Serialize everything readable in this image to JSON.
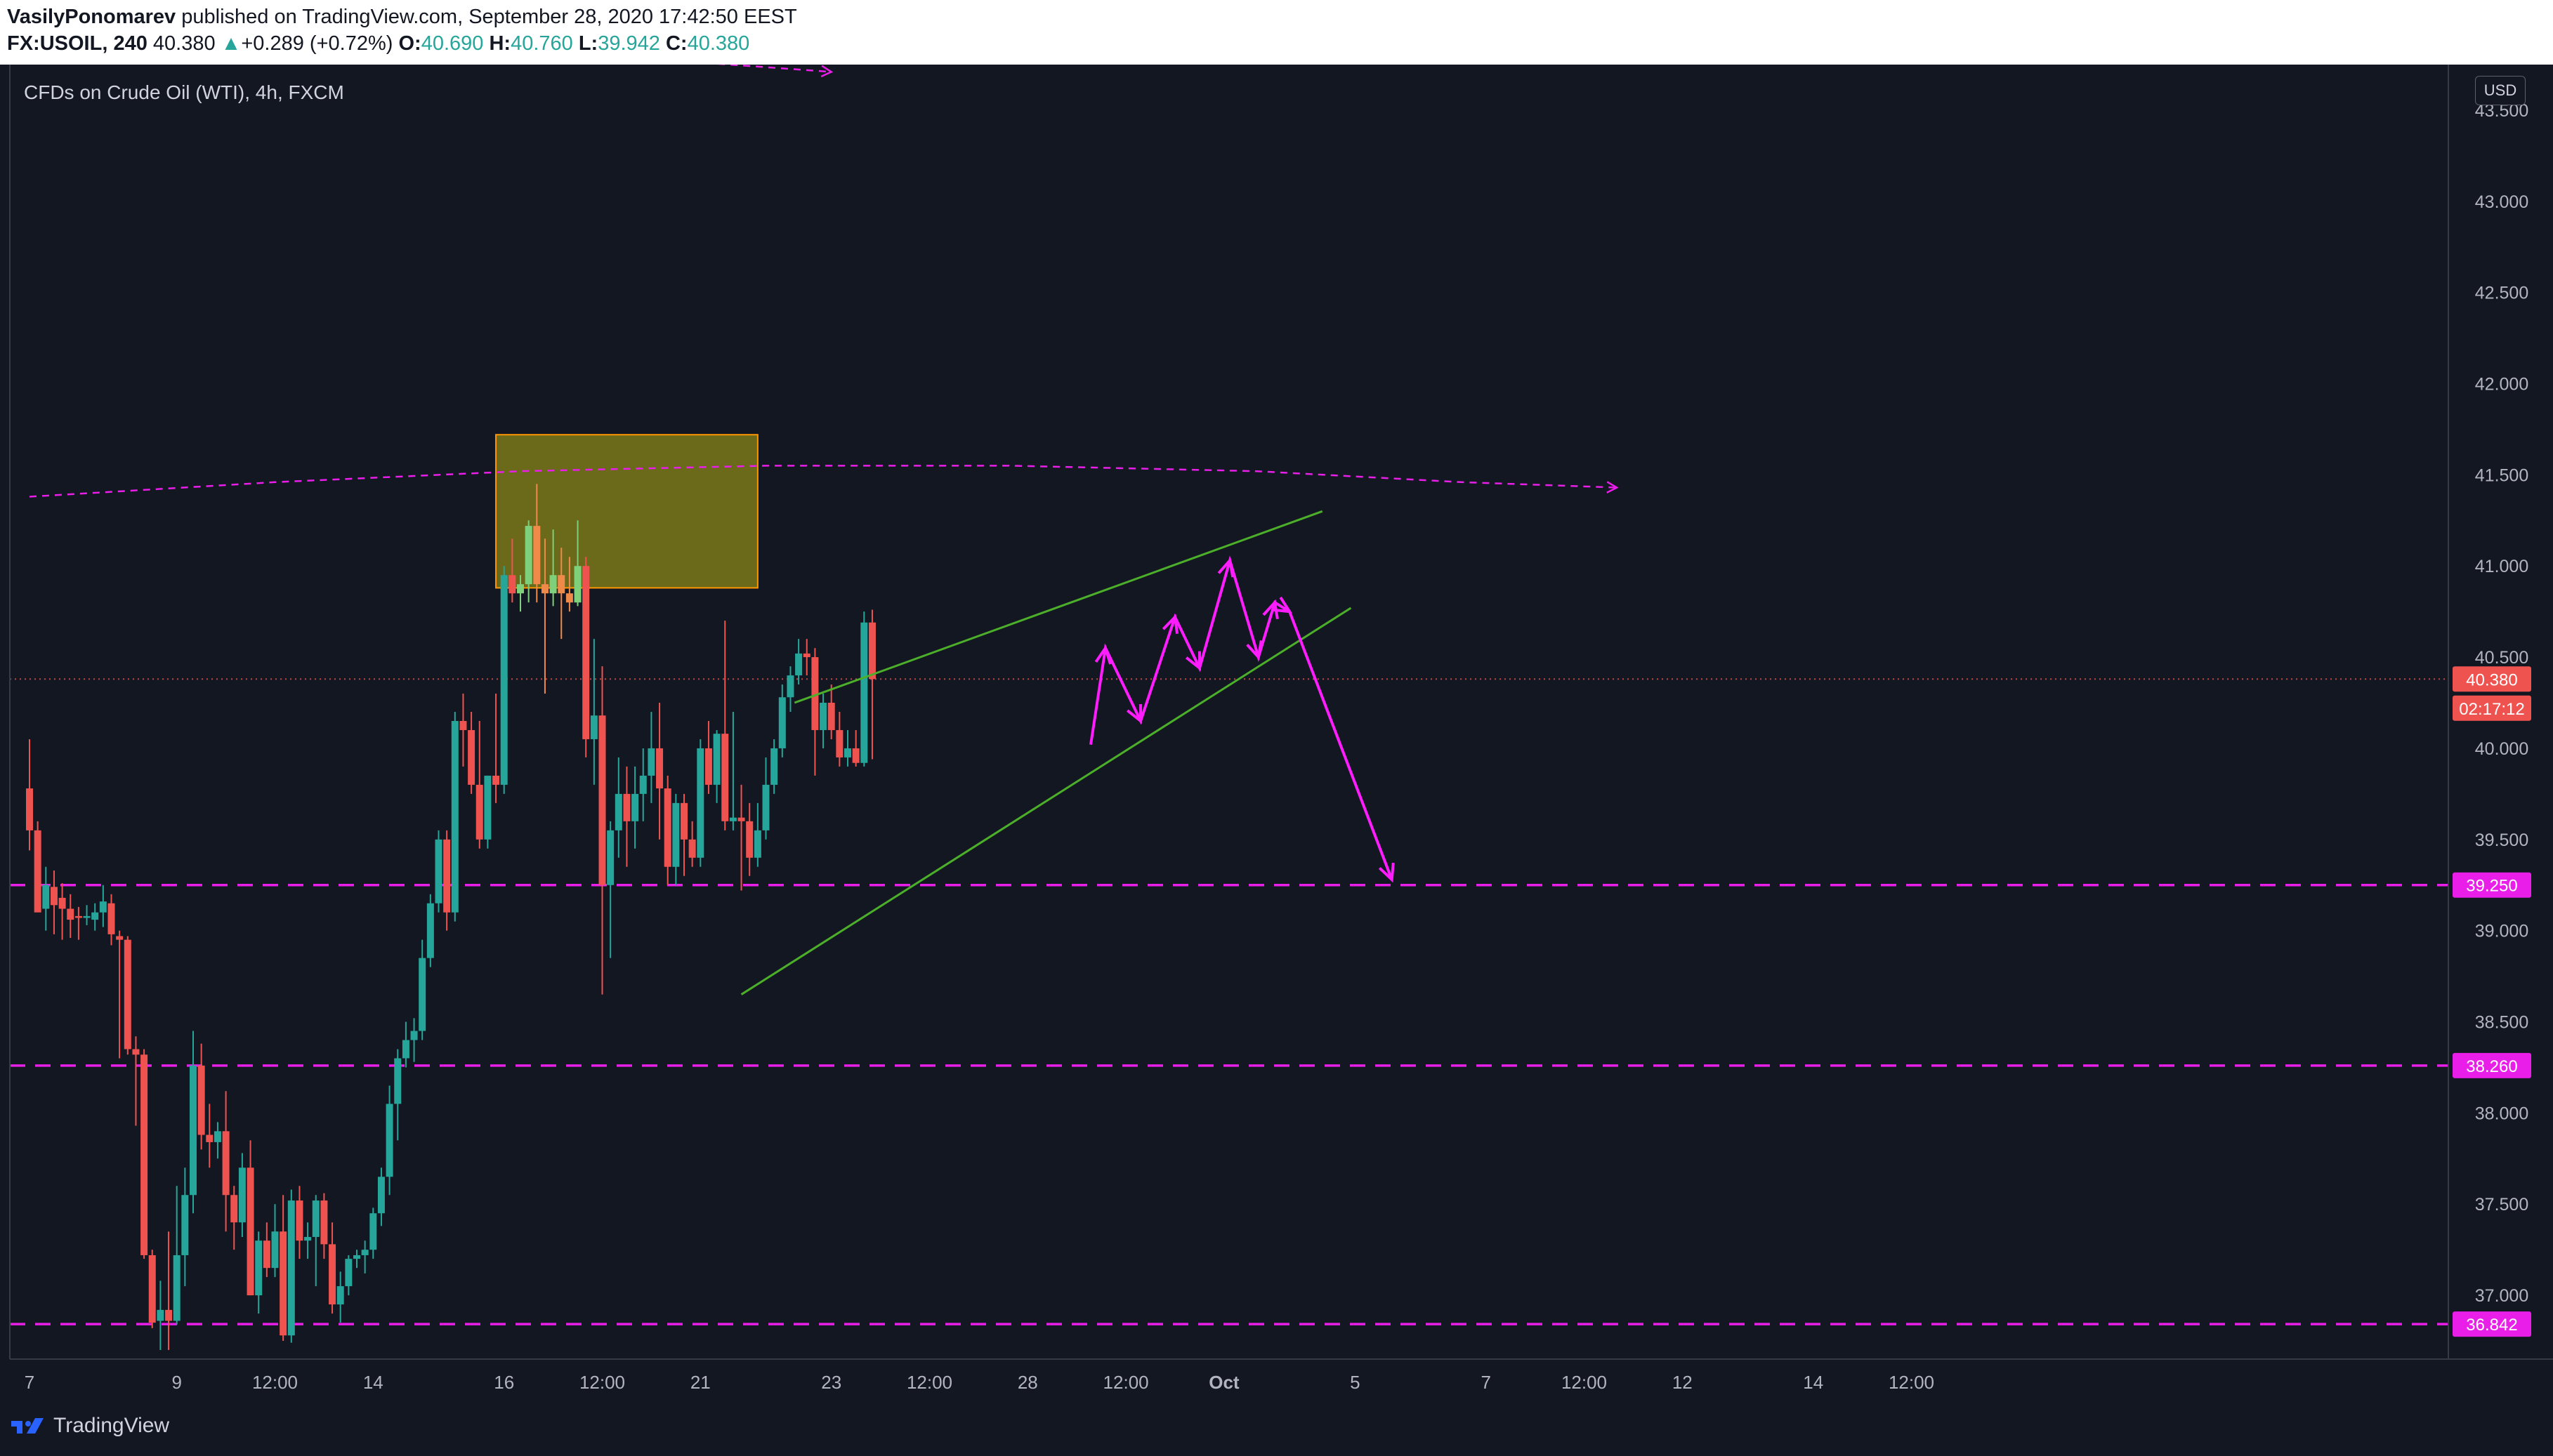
{
  "header": {
    "publisher": "VasilyPonomarev",
    "published_text": "published on TradingView.com, September 28, 2020 17:42:50 EEST",
    "symbol": "FX:USOIL, 240",
    "last": "40.380",
    "change_arrow": "▲",
    "change": "+0.289 (+0.72%)",
    "o_label": "O:",
    "o_val": "40.690",
    "h_label": "H:",
    "h_val": "40.760",
    "l_label": "L:",
    "l_val": "39.942",
    "c_label": "C:",
    "c_val": "40.380"
  },
  "chart_title": "CFDs on Crude Oil (WTI), 4h, FXCM",
  "currency": "USD",
  "footer": {
    "brand": "TradingView"
  },
  "colors": {
    "background": "#131722",
    "up": "#26a69a",
    "down": "#ef5350",
    "level": "#e91ee9",
    "trendline": "#4caf2a",
    "zone": "#6f6f1a",
    "zone_border": "#ff9800",
    "projection": "#ff1dff"
  },
  "chart_data": {
    "type": "candlestick",
    "title": "CFDs on Crude Oil (WTI), 4h, FXCM",
    "ylim": [
      36.65,
      43.75
    ],
    "y_ticks": [
      "43.500",
      "43.000",
      "42.500",
      "42.000",
      "41.500",
      "41.000",
      "40.500",
      "40.000",
      "39.500",
      "39.000",
      "38.500",
      "38.000",
      "37.500",
      "37.000"
    ],
    "x_ticks": [
      "7",
      "9",
      "12:00",
      "14",
      "16",
      "12:00",
      "21",
      "23",
      "12:00",
      "28",
      "12:00",
      "Oct",
      "5",
      "7",
      "12:00",
      "12",
      "14",
      "12:00"
    ],
    "x_tick_bars": [
      0,
      18,
      30,
      42,
      58,
      70,
      82,
      98,
      110,
      122,
      134,
      146,
      162,
      178,
      190,
      202,
      218,
      230
    ],
    "price_labels": [
      {
        "text": "40.380",
        "value": 40.38,
        "color": "#ef5350"
      },
      {
        "text": "02:17:12",
        "value": 40.22,
        "color": "#ef5350"
      },
      {
        "text": "39.250",
        "value": 39.25,
        "color": "#e91ee9"
      },
      {
        "text": "38.260",
        "value": 38.26,
        "color": "#e91ee9"
      },
      {
        "text": "36.842",
        "value": 36.842,
        "color": "#e91ee9"
      }
    ],
    "levels": [
      39.25,
      38.26,
      36.842
    ],
    "last_price": 40.38,
    "resistance_zone": {
      "x0": 57.0,
      "x1": 89.0,
      "y_high": 41.72,
      "y_low": 40.88
    },
    "wedge_upper": [
      [
        93.5,
        40.25
      ],
      [
        158,
        41.3
      ]
    ],
    "wedge_lower": [
      [
        87,
        38.65
      ],
      [
        161.5,
        40.77
      ]
    ],
    "ma_curve": [
      [
        0,
        41.38
      ],
      [
        30,
        41.46
      ],
      [
        60,
        41.52
      ],
      [
        90,
        41.55
      ],
      [
        120,
        41.55
      ],
      [
        150,
        41.52
      ],
      [
        175,
        41.46
      ],
      [
        194,
        41.43
      ]
    ],
    "ma_curve_upper": [
      [
        41,
        43.9
      ],
      [
        70,
        43.8
      ],
      [
        98,
        43.71
      ]
    ],
    "projection_path": [
      [
        129.7,
        40.02
      ],
      [
        131.5,
        40.55
      ],
      [
        135.8,
        40.15
      ],
      [
        140,
        40.72
      ],
      [
        143,
        40.44
      ],
      [
        146.7,
        41.03
      ],
      [
        150.2,
        40.5
      ],
      [
        152.2,
        40.8
      ],
      [
        154,
        40.75
      ],
      [
        166.5,
        39.28
      ]
    ],
    "candles": [
      {
        "o": 39.78,
        "h": 40.05,
        "l": 39.44,
        "c": 39.55
      },
      {
        "o": 39.55,
        "h": 39.6,
        "l": 39.15,
        "c": 39.1
      },
      {
        "o": 39.12,
        "h": 39.35,
        "l": 39.0,
        "c": 39.25
      },
      {
        "o": 39.24,
        "h": 39.33,
        "l": 38.98,
        "c": 39.14
      },
      {
        "o": 39.18,
        "h": 39.26,
        "l": 38.95,
        "c": 39.12
      },
      {
        "o": 39.12,
        "h": 39.2,
        "l": 38.96,
        "c": 39.06
      },
      {
        "o": 39.08,
        "h": 39.13,
        "l": 38.95,
        "c": 39.07
      },
      {
        "o": 39.07,
        "h": 39.14,
        "l": 39.03,
        "c": 39.08
      },
      {
        "o": 39.06,
        "h": 39.15,
        "l": 39.0,
        "c": 39.1
      },
      {
        "o": 39.1,
        "h": 39.25,
        "l": 39.02,
        "c": 39.16
      },
      {
        "o": 39.15,
        "h": 39.2,
        "l": 38.92,
        "c": 38.98
      },
      {
        "o": 38.97,
        "h": 39.0,
        "l": 38.3,
        "c": 38.95
      },
      {
        "o": 38.95,
        "h": 38.97,
        "l": 38.32,
        "c": 38.35
      },
      {
        "o": 38.35,
        "h": 38.42,
        "l": 37.93,
        "c": 38.32
      },
      {
        "o": 38.32,
        "h": 38.35,
        "l": 37.2,
        "c": 37.22
      },
      {
        "o": 37.22,
        "h": 37.25,
        "l": 36.82,
        "c": 36.85
      },
      {
        "o": 36.86,
        "h": 37.08,
        "l": 36.7,
        "c": 36.92
      },
      {
        "o": 36.92,
        "h": 37.35,
        "l": 36.7,
        "c": 36.86
      },
      {
        "o": 36.86,
        "h": 37.6,
        "l": 36.84,
        "c": 37.22
      },
      {
        "o": 37.22,
        "h": 37.7,
        "l": 37.05,
        "c": 37.55
      },
      {
        "o": 37.55,
        "h": 38.45,
        "l": 37.45,
        "c": 38.26
      },
      {
        "o": 38.26,
        "h": 38.38,
        "l": 37.8,
        "c": 37.88
      },
      {
        "o": 37.88,
        "h": 38.05,
        "l": 37.7,
        "c": 37.84
      },
      {
        "o": 37.84,
        "h": 37.95,
        "l": 37.75,
        "c": 37.9
      },
      {
        "o": 37.9,
        "h": 38.12,
        "l": 37.35,
        "c": 37.55
      },
      {
        "o": 37.55,
        "h": 37.6,
        "l": 37.25,
        "c": 37.4
      },
      {
        "o": 37.4,
        "h": 37.78,
        "l": 37.32,
        "c": 37.7
      },
      {
        "o": 37.7,
        "h": 37.85,
        "l": 37.0,
        "c": 37.0
      },
      {
        "o": 37.0,
        "h": 37.35,
        "l": 36.9,
        "c": 37.3
      },
      {
        "o": 37.3,
        "h": 37.4,
        "l": 37.1,
        "c": 37.15
      },
      {
        "o": 37.15,
        "h": 37.5,
        "l": 37.1,
        "c": 37.35
      },
      {
        "o": 37.35,
        "h": 37.55,
        "l": 36.75,
        "c": 36.78
      },
      {
        "o": 36.78,
        "h": 37.58,
        "l": 36.74,
        "c": 37.52
      },
      {
        "o": 37.52,
        "h": 37.6,
        "l": 37.2,
        "c": 37.3
      },
      {
        "o": 37.3,
        "h": 37.4,
        "l": 37.2,
        "c": 37.32
      },
      {
        "o": 37.32,
        "h": 37.55,
        "l": 37.05,
        "c": 37.52
      },
      {
        "o": 37.52,
        "h": 37.56,
        "l": 37.2,
        "c": 37.28
      },
      {
        "o": 37.28,
        "h": 37.4,
        "l": 36.9,
        "c": 36.95
      },
      {
        "o": 36.95,
        "h": 37.13,
        "l": 36.85,
        "c": 37.05
      },
      {
        "o": 37.05,
        "h": 37.22,
        "l": 37.0,
        "c": 37.2
      },
      {
        "o": 37.2,
        "h": 37.25,
        "l": 37.15,
        "c": 37.22
      },
      {
        "o": 37.22,
        "h": 37.3,
        "l": 37.12,
        "c": 37.25
      },
      {
        "o": 37.25,
        "h": 37.48,
        "l": 37.2,
        "c": 37.45
      },
      {
        "o": 37.45,
        "h": 37.7,
        "l": 37.38,
        "c": 37.65
      },
      {
        "o": 37.65,
        "h": 38.15,
        "l": 37.55,
        "c": 38.05
      },
      {
        "o": 38.05,
        "h": 38.35,
        "l": 37.85,
        "c": 38.3
      },
      {
        "o": 38.3,
        "h": 38.5,
        "l": 38.25,
        "c": 38.4
      },
      {
        "o": 38.4,
        "h": 38.52,
        "l": 38.28,
        "c": 38.45
      },
      {
        "o": 38.45,
        "h": 38.95,
        "l": 38.4,
        "c": 38.85
      },
      {
        "o": 38.85,
        "h": 39.2,
        "l": 38.8,
        "c": 39.15
      },
      {
        "o": 39.15,
        "h": 39.55,
        "l": 39.1,
        "c": 39.5
      },
      {
        "o": 39.5,
        "h": 39.55,
        "l": 39.0,
        "c": 39.1
      },
      {
        "o": 39.1,
        "h": 40.2,
        "l": 39.05,
        "c": 40.15
      },
      {
        "o": 40.15,
        "h": 40.3,
        "l": 39.9,
        "c": 40.1
      },
      {
        "o": 40.1,
        "h": 40.2,
        "l": 39.75,
        "c": 39.8
      },
      {
        "o": 39.8,
        "h": 40.15,
        "l": 39.45,
        "c": 39.5
      },
      {
        "o": 39.5,
        "h": 39.85,
        "l": 39.45,
        "c": 39.85
      },
      {
        "o": 39.85,
        "h": 40.3,
        "l": 39.7,
        "c": 39.8
      },
      {
        "o": 39.8,
        "h": 41.0,
        "l": 39.75,
        "c": 40.95
      },
      {
        "o": 40.95,
        "h": 41.15,
        "l": 40.8,
        "c": 40.85
      },
      {
        "o": 40.85,
        "h": 40.95,
        "l": 40.75,
        "c": 40.9
      },
      {
        "o": 40.9,
        "h": 41.25,
        "l": 40.8,
        "c": 41.22
      },
      {
        "o": 41.22,
        "h": 41.45,
        "l": 40.8,
        "c": 40.9
      },
      {
        "o": 40.9,
        "h": 41.15,
        "l": 40.3,
        "c": 40.85
      },
      {
        "o": 40.85,
        "h": 41.2,
        "l": 40.78,
        "c": 40.95
      },
      {
        "o": 40.95,
        "h": 41.1,
        "l": 40.6,
        "c": 40.85
      },
      {
        "o": 40.85,
        "h": 41.05,
        "l": 40.75,
        "c": 40.8
      },
      {
        "o": 40.8,
        "h": 41.25,
        "l": 40.78,
        "c": 41.0
      },
      {
        "o": 41.0,
        "h": 41.05,
        "l": 39.95,
        "c": 40.05
      },
      {
        "o": 40.05,
        "h": 40.6,
        "l": 39.8,
        "c": 40.18
      },
      {
        "o": 40.18,
        "h": 40.45,
        "l": 38.65,
        "c": 39.25
      },
      {
        "o": 39.25,
        "h": 39.6,
        "l": 38.85,
        "c": 39.55
      },
      {
        "o": 39.55,
        "h": 39.95,
        "l": 39.4,
        "c": 39.75
      },
      {
        "o": 39.75,
        "h": 39.9,
        "l": 39.35,
        "c": 39.6
      },
      {
        "o": 39.6,
        "h": 39.9,
        "l": 39.45,
        "c": 39.75
      },
      {
        "o": 39.75,
        "h": 40.0,
        "l": 39.6,
        "c": 39.85
      },
      {
        "o": 39.85,
        "h": 40.2,
        "l": 39.7,
        "c": 40.0
      },
      {
        "o": 40.0,
        "h": 40.25,
        "l": 39.5,
        "c": 39.78
      },
      {
        "o": 39.78,
        "h": 39.85,
        "l": 39.25,
        "c": 39.35
      },
      {
        "o": 39.35,
        "h": 39.75,
        "l": 39.25,
        "c": 39.7
      },
      {
        "o": 39.7,
        "h": 39.75,
        "l": 39.3,
        "c": 39.5
      },
      {
        "o": 39.5,
        "h": 39.6,
        "l": 39.35,
        "c": 39.4
      },
      {
        "o": 39.4,
        "h": 40.05,
        "l": 39.35,
        "c": 40.0
      },
      {
        "o": 40.0,
        "h": 40.15,
        "l": 39.75,
        "c": 39.8
      },
      {
        "o": 39.8,
        "h": 40.1,
        "l": 39.7,
        "c": 40.08
      },
      {
        "o": 40.08,
        "h": 40.7,
        "l": 39.55,
        "c": 39.6
      },
      {
        "o": 39.6,
        "h": 40.2,
        "l": 39.55,
        "c": 39.62
      },
      {
        "o": 39.62,
        "h": 39.8,
        "l": 39.22,
        "c": 39.6
      },
      {
        "o": 39.6,
        "h": 39.7,
        "l": 39.3,
        "c": 39.4
      },
      {
        "o": 39.4,
        "h": 39.7,
        "l": 39.35,
        "c": 39.55
      },
      {
        "o": 39.55,
        "h": 39.95,
        "l": 39.5,
        "c": 39.8
      },
      {
        "o": 39.8,
        "h": 40.05,
        "l": 39.75,
        "c": 40.0
      },
      {
        "o": 40.0,
        "h": 40.35,
        "l": 39.95,
        "c": 40.28
      },
      {
        "o": 40.28,
        "h": 40.45,
        "l": 40.2,
        "c": 40.4
      },
      {
        "o": 40.4,
        "h": 40.6,
        "l": 40.35,
        "c": 40.52
      },
      {
        "o": 40.52,
        "h": 40.6,
        "l": 40.4,
        "c": 40.5
      },
      {
        "o": 40.5,
        "h": 40.55,
        "l": 39.85,
        "c": 40.1
      },
      {
        "o": 40.1,
        "h": 40.3,
        "l": 40.0,
        "c": 40.25
      },
      {
        "o": 40.25,
        "h": 40.35,
        "l": 40.05,
        "c": 40.1
      },
      {
        "o": 40.1,
        "h": 40.2,
        "l": 39.9,
        "c": 39.95
      },
      {
        "o": 39.95,
        "h": 40.1,
        "l": 39.9,
        "c": 40.0
      },
      {
        "o": 40.0,
        "h": 40.1,
        "l": 39.9,
        "c": 39.92
      },
      {
        "o": 39.92,
        "h": 40.75,
        "l": 39.9,
        "c": 40.69
      },
      {
        "o": 40.69,
        "h": 40.76,
        "l": 39.94,
        "c": 40.38
      }
    ]
  }
}
